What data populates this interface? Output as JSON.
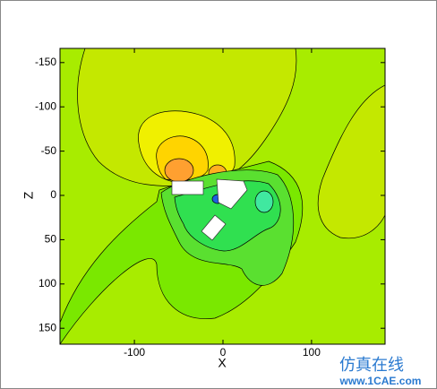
{
  "chart_data": {
    "type": "contour",
    "x_label": "X",
    "y_label": "Z",
    "xlim": [
      -184,
      183
    ],
    "xticks": [
      -100,
      0,
      100
    ],
    "ylim": [
      -166,
      168
    ],
    "yticks": [
      -150,
      -100,
      -50,
      0,
      50,
      100,
      150
    ],
    "y_inverted": true,
    "watermark": {
      "title": "仿真在线",
      "url": "www.1CAE.com"
    }
  }
}
